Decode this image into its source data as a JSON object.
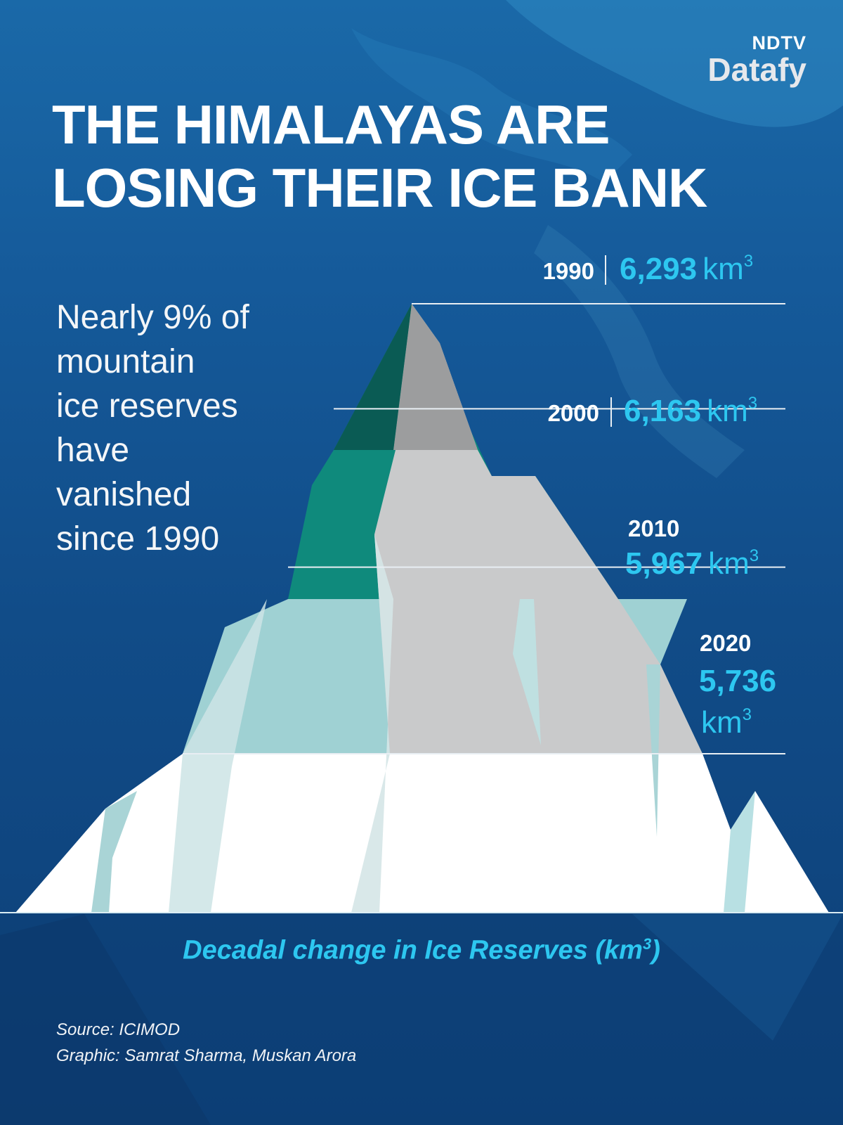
{
  "brand": {
    "top": "NDTV",
    "name": "Datafy",
    "accent": "#e4262c"
  },
  "title": {
    "line1": "THE HIMALAYAS ARE",
    "line2": "LOSING THEIR ICE BANK"
  },
  "lede": "Nearly 9% of\nmountain\nice reserves\nhave\nvanished\nsince 1990",
  "chart_data": {
    "type": "area",
    "title": "THE HIMALAYAS ARE LOSING THEIR ICE BANK",
    "xlabel": "Decadal change in Ice Reserves (km³)",
    "unit": "km³",
    "series": [
      {
        "year": "1990",
        "value": 6293,
        "label": "6,293"
      },
      {
        "year": "2000",
        "value": 6163,
        "label": "6,163"
      },
      {
        "year": "2010",
        "value": 5967,
        "label": "5,967"
      },
      {
        "year": "2020",
        "value": 5736,
        "label": "5,736"
      }
    ],
    "value_color": "#2dc7f0"
  },
  "caption": {
    "text": "Decadal change in Ice Reserves (km",
    "sup": "3",
    "close": ")"
  },
  "credits": {
    "source": "Source: ICIMOD",
    "graphic": "Graphic: Samrat Sharma, Muskan Arora"
  }
}
